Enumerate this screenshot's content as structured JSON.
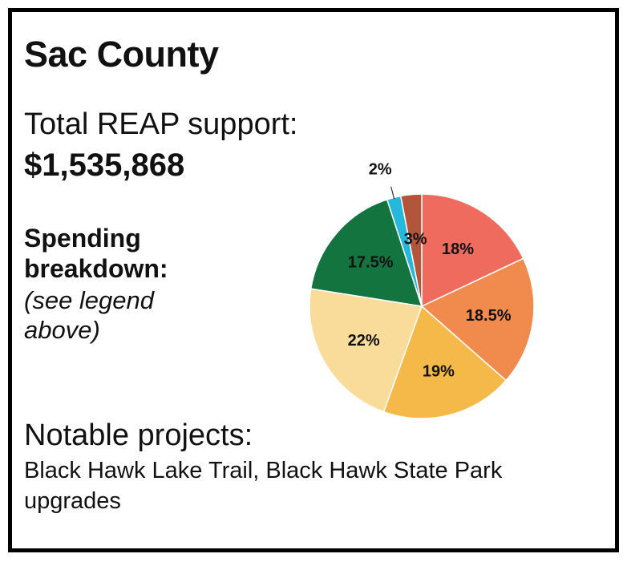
{
  "title": "Sac County",
  "total_support": {
    "label": "Total REAP support:",
    "value": "$1,535,868"
  },
  "spending": {
    "heading": "Spending breakdown:",
    "note": "(see legend above)"
  },
  "notable": {
    "heading": "Notable projects:",
    "text": "Black Hawk Lake Trail, Black Hawk State Park upgrades"
  },
  "chart_data": {
    "type": "pie",
    "title": "",
    "slices": [
      {
        "label": "18%",
        "value": 18,
        "color": "#EF6B5E"
      },
      {
        "label": "18.5%",
        "value": 18.5,
        "color": "#F08B4D"
      },
      {
        "label": "19%",
        "value": 19,
        "color": "#F5B94A"
      },
      {
        "label": "22%",
        "value": 22,
        "color": "#F9DB9A"
      },
      {
        "label": "17.5%",
        "value": 17.5,
        "color": "#137440"
      },
      {
        "label": "2%",
        "value": 2,
        "color": "#25B8DB"
      },
      {
        "label": "3%",
        "value": 3,
        "color": "#B3553A"
      }
    ]
  }
}
